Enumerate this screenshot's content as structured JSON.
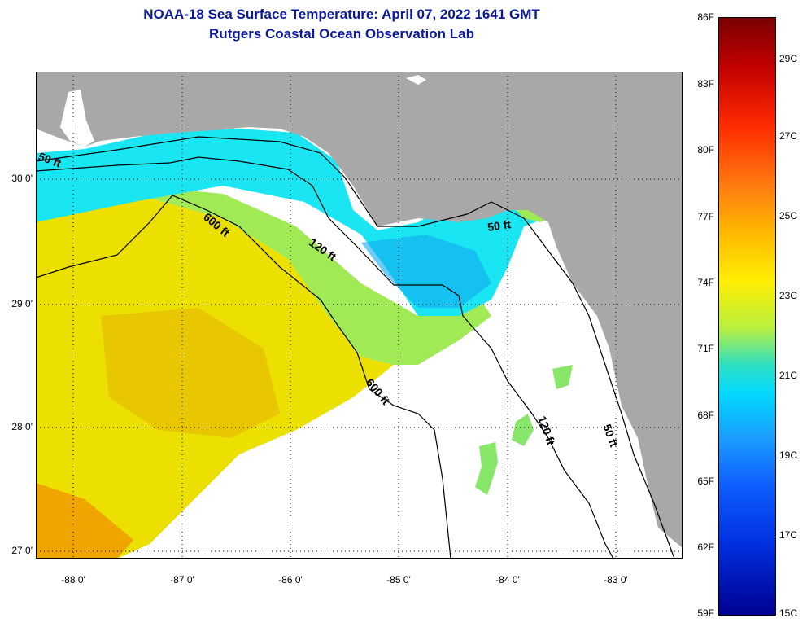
{
  "title": {
    "line1": "NOAA-18 Sea Surface Temperature:  April 07, 2022 1641 GMT",
    "line2": "Rutgers Coastal Ocean Observation Lab"
  },
  "axes": {
    "lat_labels": [
      "30 0'",
      "29 0'",
      "28 0'",
      "27 0'"
    ],
    "lon_labels": [
      "-88 0'",
      "-87 0'",
      "-86 0'",
      "-85 0'",
      "-84 0'",
      "-83 0'"
    ]
  },
  "contours": [
    "50 ft",
    "600 ft",
    "120 ft",
    "50 ft",
    "600 ft",
    "120 ft",
    "50 ft"
  ],
  "colorbar": {
    "fahrenheit": [
      "86F",
      "83F",
      "80F",
      "77F",
      "74F",
      "71F",
      "68F",
      "65F",
      "62F",
      "59F"
    ],
    "celsius": [
      "29C",
      "27C",
      "25C",
      "23C",
      "21C",
      "19C",
      "17C",
      "15C"
    ]
  },
  "colors": {
    "title": "#0a1a9a",
    "land": "#a8a8a8",
    "no_data": "#ffffff",
    "warm_water": "#ece000",
    "cool_water": "#19e6f2"
  }
}
